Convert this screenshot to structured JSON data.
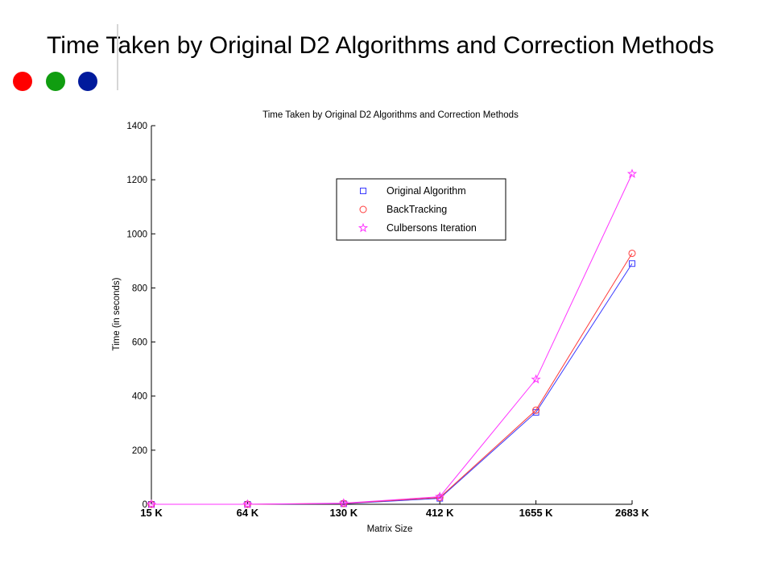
{
  "slide": {
    "title": "Time Taken by Original D2 Algorithms and Correction Methods",
    "dot_colors": [
      "#ff0000",
      "#109d10",
      "#001a9c"
    ]
  },
  "chart_data": {
    "type": "line",
    "title": "Time Taken by Original D2 Algorithms and Correction Methods",
    "xlabel": "Matrix Size",
    "ylabel": "Time (in seconds)",
    "categories": [
      "15 K",
      "64 K",
      "130 K",
      "412 K",
      "1655 K",
      "2683 K"
    ],
    "ylim": [
      0,
      1400
    ],
    "yticks": [
      0,
      200,
      400,
      600,
      800,
      1000,
      1200,
      1400
    ],
    "grid": false,
    "legend_position": "top-right",
    "series": [
      {
        "name": "Original Algorithm",
        "color": "#3a3aff",
        "marker": "square",
        "values": [
          0,
          0,
          2,
          22,
          340,
          890
        ]
      },
      {
        "name": "BackTracking",
        "color": "#ff3a3a",
        "marker": "circle",
        "values": [
          0,
          0,
          3,
          25,
          348,
          928
        ]
      },
      {
        "name": "Culbersons Iteration",
        "color": "#ff33ff",
        "marker": "star",
        "values": [
          0,
          0,
          4,
          28,
          462,
          1222
        ]
      }
    ]
  }
}
